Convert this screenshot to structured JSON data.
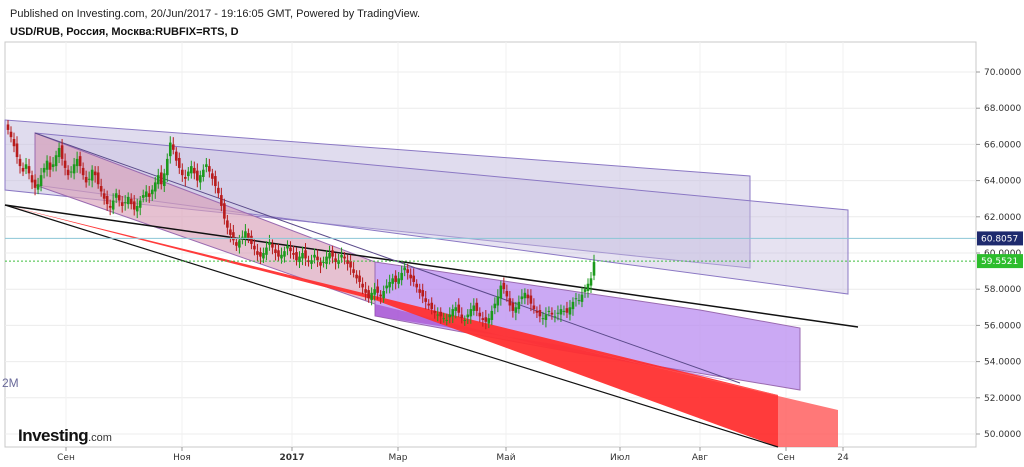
{
  "header": {
    "published": "Published on Investing.com, 20/Jun/2017 - 19:16:05 GMT, Powered by TradingView.",
    "symbol": "USD/RUB, Россия, Москва:RUBFIX=RTS, D"
  },
  "logo": {
    "main": "Investing",
    "domain": ".com"
  },
  "side_fragment": "2M",
  "price_tags": [
    {
      "value": 60.8057,
      "label": "60.8057",
      "color": "#1e2a6e",
      "line_color": "#8bc6d6"
    },
    {
      "value": 59.5521,
      "label": "59.5521",
      "color": "#2dbd2d",
      "line_color": "#3fbf3f"
    }
  ],
  "chart_data": {
    "type": "candlestick",
    "x_axis_labels": [
      "Сен",
      "Ноя",
      "2017",
      "Мар",
      "Май",
      "Июл",
      "Авг",
      "Сен",
      "24"
    ],
    "y_axis_labels": [
      "50.0000",
      "52.0000",
      "54.0000",
      "56.0000",
      "58.0000",
      "60.0000",
      "62.0000",
      "64.0000",
      "66.0000",
      "68.0000",
      "70.0000"
    ],
    "ylim": [
      49.0,
      71.5
    ],
    "up_color": "#1c9a1c",
    "down_color": "#b81c1c",
    "closes": [
      66.8,
      66.4,
      65.9,
      65.3,
      64.8,
      64.5,
      64.9,
      64.4,
      63.9,
      63.6,
      63.8,
      64.3,
      64.7,
      65.1,
      64.6,
      64.9,
      65.4,
      65.8,
      65.2,
      64.7,
      64.3,
      64.5,
      64.9,
      65.2,
      64.8,
      64.3,
      63.9,
      64.1,
      64.6,
      64.3,
      63.8,
      63.4,
      63.0,
      62.7,
      62.5,
      62.9,
      63.3,
      62.9,
      62.6,
      62.8,
      63.1,
      62.7,
      62.4,
      62.6,
      62.9,
      63.2,
      63.4,
      63.1,
      63.5,
      63.9,
      64.3,
      63.8,
      64.4,
      65.2,
      66.1,
      65.7,
      65.1,
      64.7,
      64.3,
      64.1,
      64.5,
      64.8,
      64.4,
      64.0,
      64.3,
      64.6,
      64.9,
      64.5,
      64.1,
      63.7,
      63.3,
      62.6,
      61.9,
      61.4,
      61.0,
      60.7,
      60.4,
      60.7,
      60.9,
      61.2,
      60.8,
      60.5,
      60.2,
      59.9,
      59.8,
      60.0,
      60.3,
      60.6,
      60.3,
      60.0,
      59.8,
      59.9,
      60.1,
      60.4,
      60.1,
      59.9,
      59.6,
      59.8,
      60.0,
      59.7,
      59.5,
      59.6,
      59.9,
      59.6,
      59.3,
      59.5,
      59.8,
      60.0,
      59.8,
      59.5,
      59.6,
      59.9,
      59.7,
      59.4,
      59.2,
      58.9,
      58.6,
      58.4,
      58.1,
      57.8,
      57.5,
      57.8,
      58.0,
      57.8,
      57.6,
      57.9,
      58.2,
      58.4,
      58.6,
      58.4,
      58.6,
      58.9,
      59.2,
      58.9,
      58.6,
      58.4,
      58.1,
      57.8,
      57.6,
      57.3,
      57.1,
      56.9,
      56.7,
      56.6,
      56.5,
      56.4,
      56.3,
      56.6,
      56.9,
      57.0,
      56.7,
      56.4,
      56.3,
      56.6,
      56.9,
      57.1,
      56.8,
      56.5,
      56.3,
      56.2,
      56.4,
      56.8,
      57.2,
      57.6,
      58.2,
      58.0,
      57.6,
      57.1,
      56.8,
      57.0,
      57.3,
      57.6,
      57.8,
      57.5,
      57.2,
      56.9,
      56.7,
      56.5,
      56.4,
      56.6,
      56.8,
      56.6,
      56.5,
      56.7,
      56.9,
      56.8,
      56.7,
      57.0,
      57.3,
      57.5,
      57.4,
      57.7,
      58.0,
      58.3,
      58.6,
      59.5
    ]
  }
}
